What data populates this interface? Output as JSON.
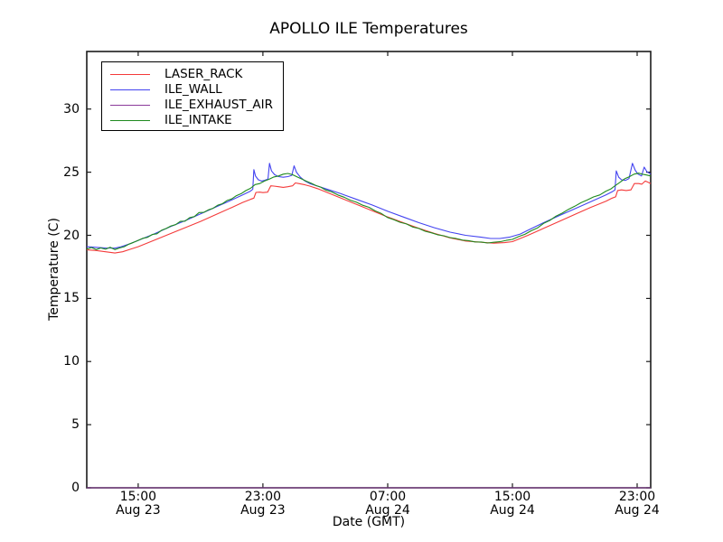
{
  "figure": {
    "title": "APOLLO ILE Temperatures",
    "background_color": "#ffffff",
    "axis_color": "#1c1c1c"
  },
  "chart_data": {
    "type": "line",
    "title": "APOLLO ILE Temperatures",
    "xlabel": "Date (GMT)",
    "ylabel": "Temperature (C)",
    "x_unit": "hours since Aug 23 00:00 GMT",
    "xlim": [
      11.7,
      47.87
    ],
    "ylim": [
      0,
      34.56
    ],
    "grid": false,
    "legend_position": "upper left",
    "xticks": {
      "pos": [
        15,
        23,
        31,
        39,
        47
      ],
      "time_labels": [
        "15:00",
        "23:00",
        "07:00",
        "15:00",
        "23:00"
      ],
      "date_labels": [
        "Aug 23",
        "Aug 23",
        "Aug 24",
        "Aug 24",
        "Aug 24"
      ]
    },
    "yticks": [
      0,
      5,
      10,
      15,
      20,
      25,
      30
    ],
    "series": [
      {
        "name": "LASER_RACK",
        "color": "#f43a3a",
        "points": [
          [
            11.7,
            18.85
          ],
          [
            12.3,
            18.8
          ],
          [
            12.9,
            18.7
          ],
          [
            13.5,
            18.6
          ],
          [
            14.0,
            18.7
          ],
          [
            14.5,
            18.9
          ],
          [
            15.0,
            19.1
          ],
          [
            16.0,
            19.6
          ],
          [
            17.0,
            20.1
          ],
          [
            18.0,
            20.6
          ],
          [
            19.0,
            21.1
          ],
          [
            20.0,
            21.65
          ],
          [
            21.0,
            22.2
          ],
          [
            21.7,
            22.6
          ],
          [
            22.2,
            22.85
          ],
          [
            22.42,
            22.95
          ],
          [
            22.55,
            23.4
          ],
          [
            22.8,
            23.42
          ],
          [
            23.0,
            23.38
          ],
          [
            23.3,
            23.42
          ],
          [
            23.5,
            23.92
          ],
          [
            23.7,
            23.9
          ],
          [
            24.0,
            23.85
          ],
          [
            24.3,
            23.8
          ],
          [
            24.6,
            23.85
          ],
          [
            24.9,
            23.92
          ],
          [
            25.08,
            24.15
          ],
          [
            25.3,
            24.1
          ],
          [
            25.7,
            24.0
          ],
          [
            26.0,
            23.9
          ],
          [
            26.5,
            23.7
          ],
          [
            27.0,
            23.45
          ],
          [
            28.0,
            22.95
          ],
          [
            29.0,
            22.45
          ],
          [
            30.0,
            21.95
          ],
          [
            31.0,
            21.45
          ],
          [
            32.0,
            21.0
          ],
          [
            33.0,
            20.55
          ],
          [
            34.0,
            20.15
          ],
          [
            35.0,
            19.8
          ],
          [
            36.0,
            19.55
          ],
          [
            37.0,
            19.45
          ],
          [
            37.8,
            19.38
          ],
          [
            38.5,
            19.42
          ],
          [
            39.0,
            19.5
          ],
          [
            40.0,
            20.0
          ],
          [
            41.0,
            20.55
          ],
          [
            42.0,
            21.1
          ],
          [
            43.0,
            21.65
          ],
          [
            44.0,
            22.2
          ],
          [
            45.0,
            22.7
          ],
          [
            45.4,
            22.95
          ],
          [
            45.62,
            23.05
          ],
          [
            45.75,
            23.55
          ],
          [
            46.0,
            23.6
          ],
          [
            46.3,
            23.55
          ],
          [
            46.6,
            23.6
          ],
          [
            46.82,
            24.1
          ],
          [
            47.1,
            24.1
          ],
          [
            47.3,
            24.05
          ],
          [
            47.52,
            24.3
          ],
          [
            47.7,
            24.2
          ],
          [
            47.87,
            24.1
          ]
        ]
      },
      {
        "name": "ILE_WALL",
        "color": "#4343f0",
        "points": [
          [
            11.7,
            19.1
          ],
          [
            12.3,
            19.05
          ],
          [
            12.9,
            19.0
          ],
          [
            13.5,
            18.98
          ],
          [
            13.9,
            19.1
          ],
          [
            14.5,
            19.35
          ],
          [
            15.0,
            19.6
          ],
          [
            16.0,
            20.1
          ],
          [
            17.0,
            20.65
          ],
          [
            18.0,
            21.15
          ],
          [
            19.0,
            21.7
          ],
          [
            20.0,
            22.25
          ],
          [
            21.0,
            22.8
          ],
          [
            21.7,
            23.2
          ],
          [
            22.2,
            23.5
          ],
          [
            22.35,
            23.65
          ],
          [
            22.42,
            25.2
          ],
          [
            22.52,
            24.7
          ],
          [
            22.7,
            24.4
          ],
          [
            22.9,
            24.3
          ],
          [
            23.1,
            24.35
          ],
          [
            23.32,
            24.45
          ],
          [
            23.42,
            25.7
          ],
          [
            23.55,
            25.1
          ],
          [
            23.75,
            24.8
          ],
          [
            24.0,
            24.65
          ],
          [
            24.3,
            24.6
          ],
          [
            24.6,
            24.65
          ],
          [
            24.85,
            24.75
          ],
          [
            25.0,
            25.5
          ],
          [
            25.15,
            25.0
          ],
          [
            25.4,
            24.6
          ],
          [
            25.7,
            24.3
          ],
          [
            26.0,
            24.1
          ],
          [
            26.5,
            23.9
          ],
          [
            27.0,
            23.7
          ],
          [
            28.0,
            23.3
          ],
          [
            29.0,
            22.85
          ],
          [
            30.0,
            22.4
          ],
          [
            31.0,
            21.9
          ],
          [
            32.0,
            21.45
          ],
          [
            33.0,
            21.0
          ],
          [
            34.0,
            20.6
          ],
          [
            35.0,
            20.25
          ],
          [
            36.0,
            20.0
          ],
          [
            37.0,
            19.85
          ],
          [
            37.6,
            19.75
          ],
          [
            38.2,
            19.75
          ],
          [
            38.8,
            19.85
          ],
          [
            39.5,
            20.1
          ],
          [
            40.0,
            20.4
          ],
          [
            41.0,
            21.0
          ],
          [
            42.0,
            21.55
          ],
          [
            43.0,
            22.1
          ],
          [
            44.0,
            22.65
          ],
          [
            45.0,
            23.2
          ],
          [
            45.4,
            23.45
          ],
          [
            45.58,
            23.6
          ],
          [
            45.66,
            25.1
          ],
          [
            45.82,
            24.6
          ],
          [
            46.0,
            24.4
          ],
          [
            46.25,
            24.35
          ],
          [
            46.48,
            24.5
          ],
          [
            46.7,
            25.7
          ],
          [
            46.88,
            25.15
          ],
          [
            47.05,
            24.85
          ],
          [
            47.28,
            24.7
          ],
          [
            47.45,
            25.4
          ],
          [
            47.62,
            25.05
          ],
          [
            47.87,
            24.85
          ]
        ]
      },
      {
        "name": "ILE_EXHAUST_AIR",
        "color": "#8a3a9a",
        "points": [
          [
            11.7,
            0
          ],
          [
            47.87,
            0
          ]
        ]
      },
      {
        "name": "ILE_INTAKE",
        "color": "#1e8a1e",
        "points": [
          [
            11.7,
            18.9
          ],
          [
            12.0,
            19.03
          ],
          [
            12.3,
            18.87
          ],
          [
            12.6,
            19.0
          ],
          [
            12.9,
            18.9
          ],
          [
            13.2,
            19.05
          ],
          [
            13.5,
            18.87
          ],
          [
            13.8,
            19.0
          ],
          [
            14.1,
            19.1
          ],
          [
            14.4,
            19.3
          ],
          [
            14.7,
            19.44
          ],
          [
            15.0,
            19.6
          ],
          [
            15.3,
            19.76
          ],
          [
            15.6,
            19.84
          ],
          [
            15.9,
            20.06
          ],
          [
            16.2,
            20.12
          ],
          [
            16.5,
            20.4
          ],
          [
            16.8,
            20.54
          ],
          [
            17.1,
            20.74
          ],
          [
            17.4,
            20.84
          ],
          [
            17.7,
            21.1
          ],
          [
            18.0,
            21.12
          ],
          [
            18.3,
            21.4
          ],
          [
            18.6,
            21.48
          ],
          [
            18.9,
            21.8
          ],
          [
            19.2,
            21.82
          ],
          [
            19.5,
            22.02
          ],
          [
            19.8,
            22.14
          ],
          [
            20.1,
            22.38
          ],
          [
            20.4,
            22.5
          ],
          [
            20.7,
            22.76
          ],
          [
            21.0,
            22.88
          ],
          [
            21.3,
            23.14
          ],
          [
            21.6,
            23.3
          ],
          [
            21.9,
            23.54
          ],
          [
            22.2,
            23.72
          ],
          [
            22.5,
            24.02
          ],
          [
            22.8,
            24.1
          ],
          [
            23.1,
            24.3
          ],
          [
            23.4,
            24.44
          ],
          [
            23.7,
            24.62
          ],
          [
            24.0,
            24.7
          ],
          [
            24.3,
            24.84
          ],
          [
            24.6,
            24.9
          ],
          [
            24.9,
            24.8
          ],
          [
            25.2,
            24.62
          ],
          [
            25.5,
            24.46
          ],
          [
            25.8,
            24.28
          ],
          [
            26.1,
            24.12
          ],
          [
            26.4,
            23.94
          ],
          [
            26.7,
            23.82
          ],
          [
            27.0,
            23.6
          ],
          [
            27.4,
            23.44
          ],
          [
            27.8,
            23.2
          ],
          [
            28.2,
            23.02
          ],
          [
            28.6,
            22.78
          ],
          [
            29.0,
            22.62
          ],
          [
            29.4,
            22.38
          ],
          [
            29.8,
            22.22
          ],
          [
            30.2,
            21.93
          ],
          [
            30.6,
            21.72
          ],
          [
            31.0,
            21.4
          ],
          [
            31.4,
            21.24
          ],
          [
            31.8,
            21.03
          ],
          [
            32.2,
            20.9
          ],
          [
            32.6,
            20.66
          ],
          [
            33.0,
            20.54
          ],
          [
            33.4,
            20.32
          ],
          [
            33.8,
            20.2
          ],
          [
            34.2,
            20.04
          ],
          [
            34.6,
            19.96
          ],
          [
            35.0,
            19.82
          ],
          [
            35.4,
            19.74
          ],
          [
            35.8,
            19.62
          ],
          [
            36.2,
            19.58
          ],
          [
            36.6,
            19.48
          ],
          [
            37.0,
            19.47
          ],
          [
            37.4,
            19.39
          ],
          [
            37.8,
            19.45
          ],
          [
            38.2,
            19.49
          ],
          [
            38.6,
            19.6
          ],
          [
            39.0,
            19.68
          ],
          [
            39.4,
            19.9
          ],
          [
            39.8,
            20.08
          ],
          [
            40.2,
            20.36
          ],
          [
            40.6,
            20.58
          ],
          [
            41.0,
            20.94
          ],
          [
            41.4,
            21.18
          ],
          [
            41.8,
            21.52
          ],
          [
            42.2,
            21.76
          ],
          [
            42.6,
            22.06
          ],
          [
            43.0,
            22.3
          ],
          [
            43.4,
            22.58
          ],
          [
            43.8,
            22.8
          ],
          [
            44.2,
            23.04
          ],
          [
            44.6,
            23.2
          ],
          [
            45.0,
            23.5
          ],
          [
            45.3,
            23.66
          ],
          [
            45.6,
            23.94
          ],
          [
            45.9,
            24.2
          ],
          [
            46.2,
            24.48
          ],
          [
            46.5,
            24.64
          ],
          [
            46.8,
            24.84
          ],
          [
            47.1,
            24.92
          ],
          [
            47.4,
            24.82
          ],
          [
            47.6,
            24.78
          ],
          [
            47.87,
            24.7
          ]
        ]
      }
    ]
  }
}
